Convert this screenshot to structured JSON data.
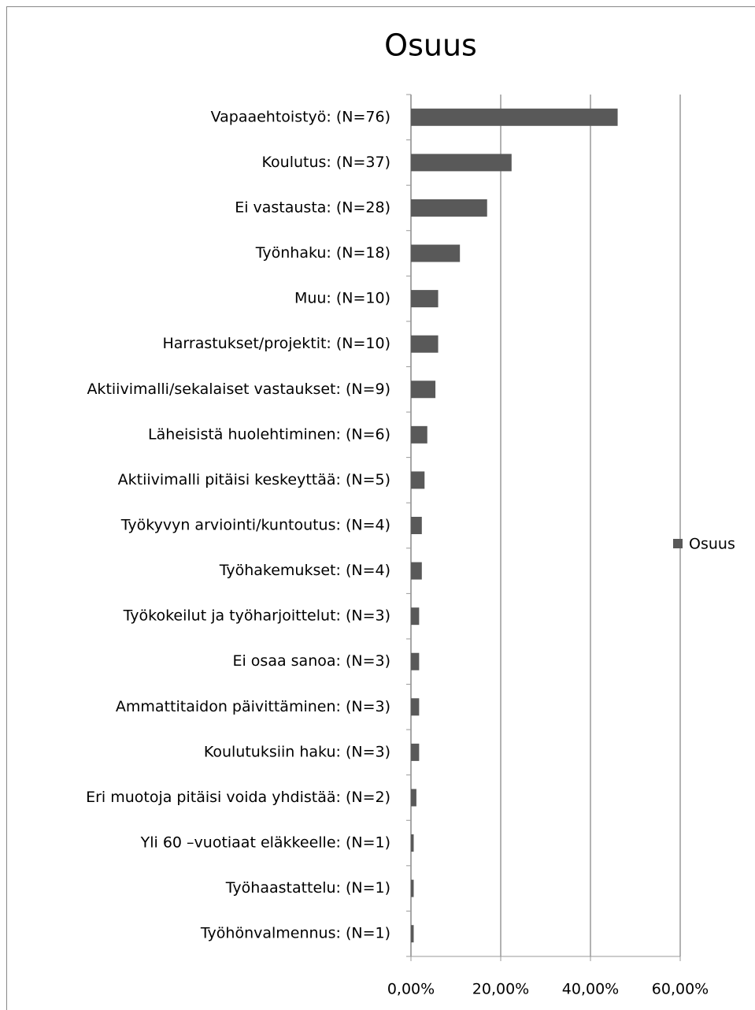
{
  "chart_data": {
    "type": "bar",
    "orientation": "horizontal",
    "title": "Osuus",
    "categories": [
      "Vapaaehtoistyö:  (N=76)",
      "Koulutus: (N=37)",
      "Ei vastausta: (N=28)",
      "Työnhaku: (N=18)",
      "Muu: (N=10)",
      "Harrastukset/projektit: (N=10)",
      "Aktiivimalli/sekalaiset vastaukset: (N=9)",
      "Läheisistä huolehtiminen: (N=6)",
      "Aktiivimalli pitäisi keskeyttää: (N=5)",
      "Työkyvyn arviointi/kuntoutus: (N=4)",
      "Työhakemukset: (N=4)",
      "Työkokeilut ja työharjoittelut: (N=3)",
      "Ei osaa sanoa: (N=3)",
      "Ammattitaidon päivittäminen: (N=3)",
      "Koulutuksiin haku: (N=3)",
      "Eri muotoja pitäisi voida yhdistää: (N=2)",
      "Yli 60 –vuotiaat eläkkeelle: (N=1)",
      "Työhaastattelu: (N=1)",
      "Työhönvalmennus: (N=1)"
    ],
    "series": [
      {
        "name": "Osuus",
        "color": "#595959",
        "values": [
          46.06,
          22.42,
          16.97,
          10.91,
          6.06,
          6.06,
          5.45,
          3.64,
          3.03,
          2.42,
          2.42,
          1.82,
          1.82,
          1.82,
          1.82,
          1.21,
          0.61,
          0.61,
          0.61
        ]
      }
    ],
    "xlim": [
      0,
      60
    ],
    "xticks": [
      {
        "value": 0,
        "label": "0,00%"
      },
      {
        "value": 20,
        "label": "20,00%"
      },
      {
        "value": 40,
        "label": "40,00%"
      },
      {
        "value": 60,
        "label": "60,00%"
      }
    ],
    "grid": true,
    "legend": "right"
  }
}
